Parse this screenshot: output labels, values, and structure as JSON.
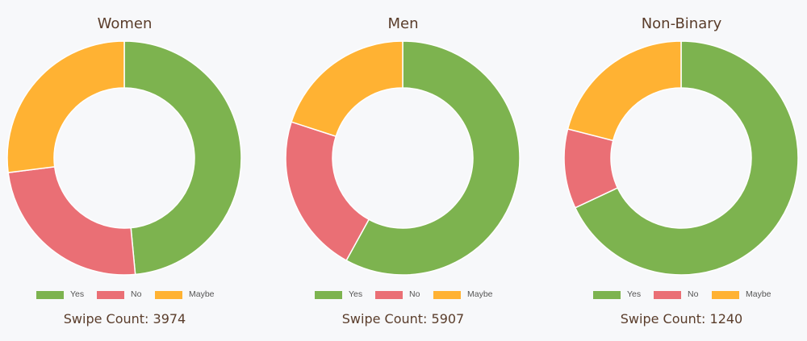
{
  "legend": [
    {
      "label": "Yes",
      "color": "#7db34f"
    },
    {
      "label": "No",
      "color": "#ea6f75"
    },
    {
      "label": "Maybe",
      "color": "#ffb233"
    }
  ],
  "chart_data": [
    {
      "type": "pie",
      "style": "doughnut",
      "title": "Women",
      "categories": [
        "Yes",
        "No",
        "Maybe"
      ],
      "values": [
        48.5,
        24.5,
        27.0
      ],
      "swipe_count_text": "Swipe Count: 3974"
    },
    {
      "type": "pie",
      "style": "doughnut",
      "title": "Men",
      "categories": [
        "Yes",
        "No",
        "Maybe"
      ],
      "values": [
        58.0,
        22.0,
        20.0
      ],
      "swipe_count_text": "Swipe Count: 5907"
    },
    {
      "type": "pie",
      "style": "doughnut",
      "title": "Non-Binary",
      "categories": [
        "Yes",
        "No",
        "Maybe"
      ],
      "values": [
        68.0,
        11.0,
        21.0
      ],
      "swipe_count_text": "Swipe Count: 1240"
    }
  ]
}
